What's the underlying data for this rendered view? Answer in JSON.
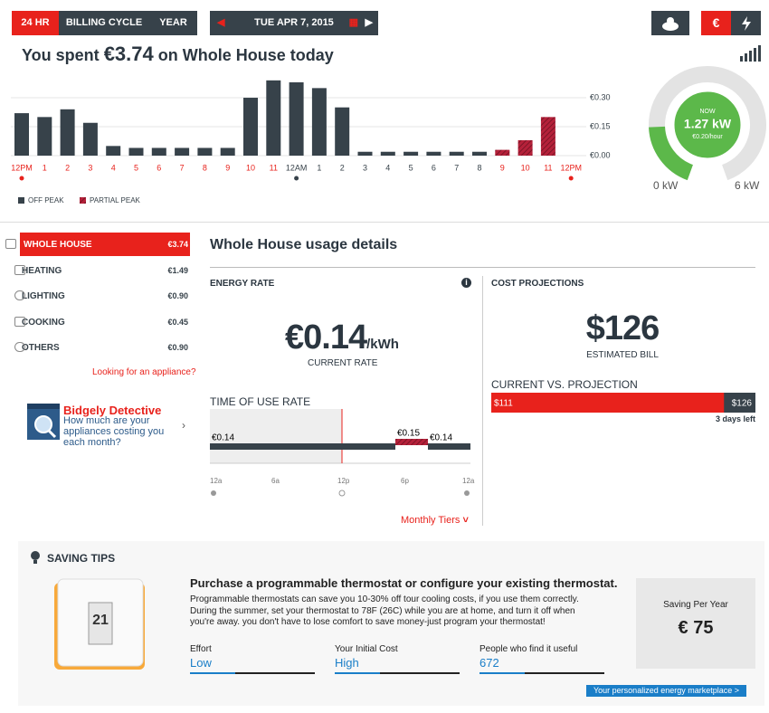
{
  "tabs": [
    "24 HR",
    "BILLING CYCLE",
    "YEAR"
  ],
  "date": "TUE APR 7, 2015",
  "currency_button": "€",
  "header": {
    "prefix": "You spent",
    "amount": "€3.74",
    "suffix": "on Whole House today"
  },
  "chart_data": {
    "type": "bar",
    "categories": [
      "12PM",
      "1",
      "2",
      "3",
      "4",
      "5",
      "6",
      "7",
      "8",
      "9",
      "10",
      "11",
      "12AM",
      "1",
      "2",
      "3",
      "4",
      "5",
      "6",
      "7",
      "8",
      "9",
      "10",
      "11",
      "12PM"
    ],
    "series": [
      {
        "name": "OFF PEAK",
        "color": "#37424a",
        "values": [
          0.22,
          0.2,
          0.24,
          0.17,
          0.05,
          0.04,
          0.04,
          0.04,
          0.04,
          0.04,
          0.3,
          0.39,
          0.38,
          0.35,
          0.25,
          0.02,
          0.02,
          0.02,
          0.02,
          0.02,
          0.02,
          null,
          null,
          null,
          null
        ]
      },
      {
        "name": "PARTIAL PEAK",
        "color": "#b5213a",
        "values": [
          null,
          null,
          null,
          null,
          null,
          null,
          null,
          null,
          null,
          null,
          null,
          null,
          null,
          null,
          null,
          null,
          null,
          null,
          null,
          null,
          null,
          0.03,
          0.08,
          0.2,
          null
        ]
      }
    ],
    "ylim": [
      0,
      0.4
    ],
    "yticks": [
      {
        "value": 0,
        "label": "€0.00"
      },
      {
        "value": 0.15,
        "label": "€0.15"
      },
      {
        "value": 0.3,
        "label": "€0.30"
      }
    ]
  },
  "gauge": {
    "now": "NOW",
    "min": 0,
    "max": 6,
    "min_label": "0 kW",
    "max_label": "6 kW",
    "value": 1.27,
    "value_label": "1.27 kW",
    "rate": "€0.20/hour"
  },
  "menu": [
    {
      "label": "WHOLE HOUSE",
      "value": "€3.74"
    },
    {
      "label": "HEATING",
      "value": "€1.49"
    },
    {
      "label": "LIGHTING",
      "value": "€0.90"
    },
    {
      "label": "COOKING",
      "value": "€0.45"
    },
    {
      "label": "OTHERS",
      "value": "€0.90"
    }
  ],
  "appliance_link": "Looking for an appliance?",
  "detective": {
    "title": "Bidgely Detective",
    "text": "How much are your appliances costing you each month?"
  },
  "details_title": "Whole House usage details",
  "energy_rate": {
    "heading": "ENERGY RATE",
    "value": "€0.14",
    "unit": "/kWh",
    "caption": "CURRENT RATE"
  },
  "tou": {
    "heading": "TIME OF USE RATE",
    "rates": [
      "€0.14",
      "€0.15",
      "€0.14"
    ],
    "ticks": [
      "12a",
      "6a",
      "12p",
      "6p",
      "12a"
    ],
    "link": "Monthly Tiers"
  },
  "cost": {
    "heading": "COST PROJECTIONS",
    "value": "$126",
    "caption": "ESTIMATED BILL",
    "compare_heading": "CURRENT VS. PROJECTION",
    "current": 111,
    "current_label": "$111",
    "projection": 126,
    "projection_label": "$126",
    "days_left": "3 days left"
  },
  "tips": {
    "heading": "SAVING TIPS",
    "thermostat_display": "21",
    "title": "Purchase a programmable thermostat or configure your existing thermostat.",
    "text": "Programmable thermostats can save you 10-30% off tour cooling costs, if you use them correctly. During the summer, set your thermostat to 78F (26C) while you are at home, and turn it off when you're away. you don't have to lose comfort to save money-just program your thermostat!",
    "metrics": [
      {
        "label": "Effort",
        "value": "Low"
      },
      {
        "label": "Your Initial Cost",
        "value": "High"
      },
      {
        "label": "People who find it useful",
        "value": "672"
      }
    ],
    "saving_label": "Saving Per Year",
    "saving": "€ 75",
    "link": "Your personalized energy marketplace >"
  }
}
